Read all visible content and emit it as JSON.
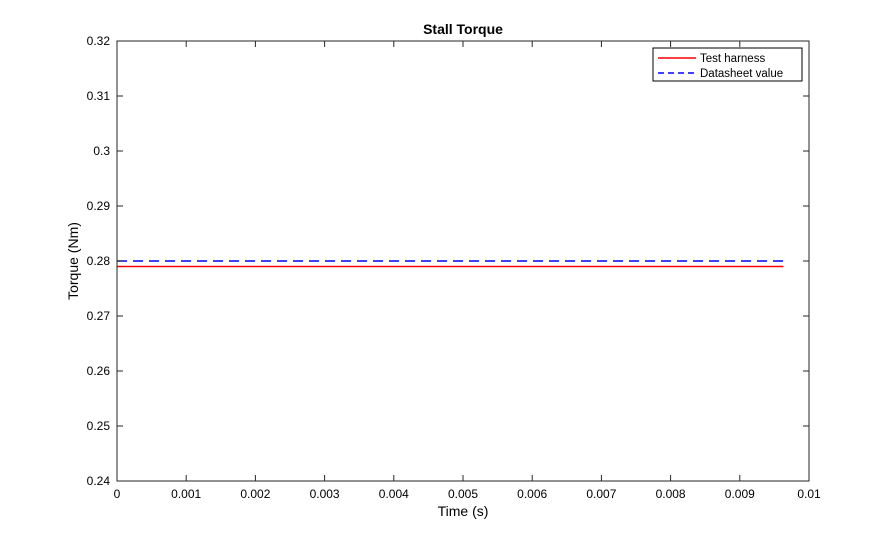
{
  "chart_data": {
    "type": "line",
    "title": "Stall Torque",
    "xlabel": "Time (s)",
    "ylabel": "Torque (Nm)",
    "xlim": [
      0,
      0.01
    ],
    "ylim": [
      0.24,
      0.32
    ],
    "x_ticks": [
      "0",
      "0.001",
      "0.002",
      "0.003",
      "0.004",
      "0.005",
      "0.006",
      "0.007",
      "0.008",
      "0.009",
      "0.01"
    ],
    "y_ticks": [
      "0.24",
      "0.25",
      "0.26",
      "0.27",
      "0.28",
      "0.29",
      "0.3",
      "0.31",
      "0.32"
    ],
    "grid": false,
    "legend_position": "top-right",
    "series": [
      {
        "name": "Test harness",
        "color": "#ff0000",
        "dash": "solid",
        "x": [
          0,
          0.00963
        ],
        "y": [
          0.279,
          0.279
        ]
      },
      {
        "name": "Datasheet value",
        "color": "#0000ff",
        "dash": "dashed",
        "x": [
          0,
          0.00963
        ],
        "y": [
          0.28,
          0.28
        ]
      }
    ]
  }
}
